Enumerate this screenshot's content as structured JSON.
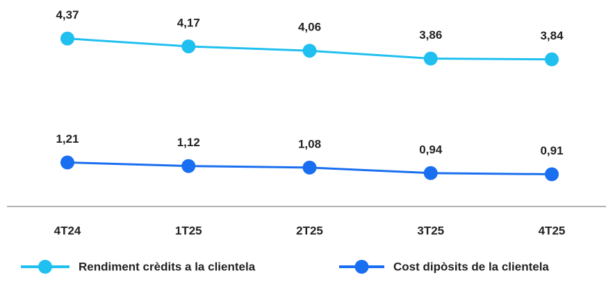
{
  "chart_data": {
    "type": "line",
    "categories": [
      "4T24",
      "1T25",
      "2T25",
      "3T25",
      "4T25"
    ],
    "series": [
      {
        "name": "Rendiment crèdits a la clientela",
        "color": "#1fc0f0",
        "values": [
          4.37,
          4.17,
          4.06,
          3.86,
          3.84
        ],
        "value_labels": [
          "4,37",
          "4,17",
          "4,06",
          "3,86",
          "3,84"
        ]
      },
      {
        "name": "Cost dipòsits de la clientela",
        "color": "#1a6ef0",
        "values": [
          1.21,
          1.12,
          1.08,
          0.94,
          0.91
        ],
        "value_labels": [
          "1,21",
          "1,12",
          "1,08",
          "0,94",
          "0,91"
        ]
      }
    ],
    "ylim": [
      0,
      5
    ],
    "legend": "bottom"
  }
}
